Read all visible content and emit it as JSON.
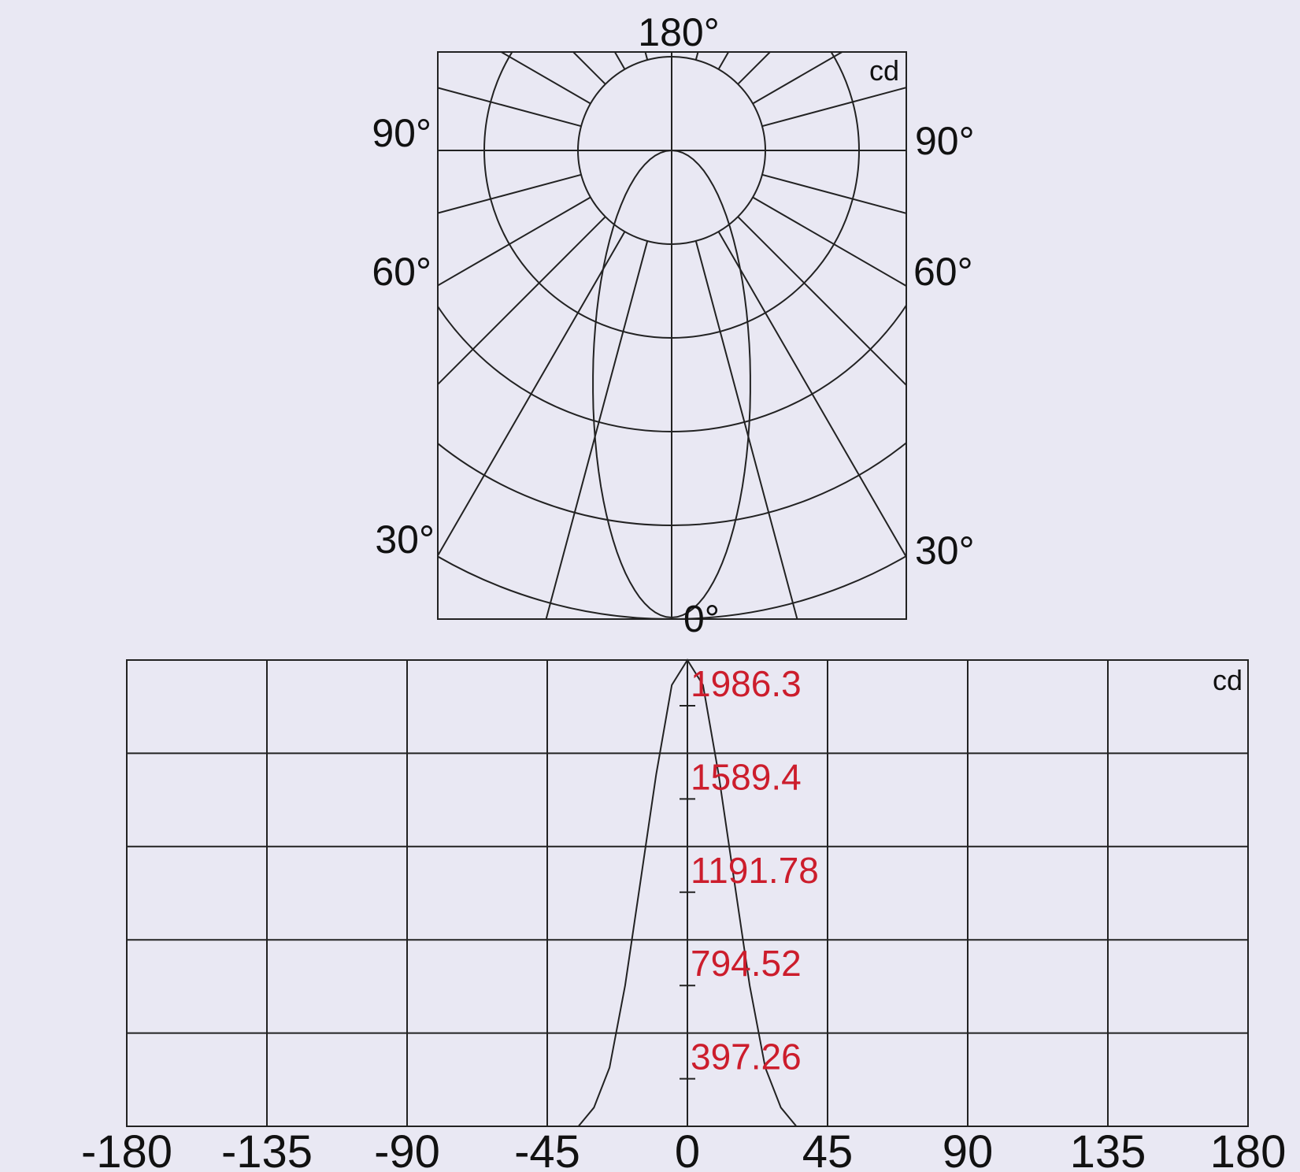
{
  "chart_data": [
    {
      "type": "polar",
      "title": "",
      "unit_label": "cd",
      "angle_labels": {
        "top": "180°",
        "bottom": "0°",
        "left": [
          "90°",
          "60°",
          "30°"
        ],
        "right": [
          "90°",
          "60°",
          "30°"
        ]
      },
      "angle_ticks_deg": [
        0,
        30,
        60,
        90,
        180
      ],
      "rings": 6,
      "spoke_step_deg": 15,
      "grid": true,
      "series": [
        {
          "angles_deg": [
            0,
            5,
            10,
            15,
            20,
            25,
            30,
            35,
            40,
            45,
            60,
            90
          ],
          "values": [
            1986.3,
            1950,
            1800,
            1500,
            1150,
            780,
            500,
            280,
            150,
            70,
            10,
            0
          ]
        }
      ]
    },
    {
      "type": "line",
      "title": "",
      "unit_label": "cd",
      "x_ticks": [
        "-180",
        "-135",
        "-90",
        "-45",
        "0",
        "45",
        "90",
        "135",
        "180"
      ],
      "xlim": [
        -180,
        180
      ],
      "ylim": [
        0,
        1986.3
      ],
      "y_labels": [
        "1986.3",
        "1589.4",
        "1191.78",
        "794.52",
        "397.26"
      ],
      "y_values": [
        1986.3,
        1589.4,
        1191.78,
        794.52,
        397.26
      ],
      "label_color": "#cc1d2c",
      "grid": true,
      "series": [
        {
          "x": [
            -35,
            -30,
            -25,
            -20,
            -15,
            -10,
            -5,
            0,
            5,
            10,
            15,
            20,
            25,
            30,
            35
          ],
          "values": [
            0,
            80,
            250,
            600,
            1050,
            1500,
            1880,
            1986.3,
            1880,
            1500,
            1050,
            600,
            250,
            80,
            0
          ]
        }
      ]
    }
  ]
}
